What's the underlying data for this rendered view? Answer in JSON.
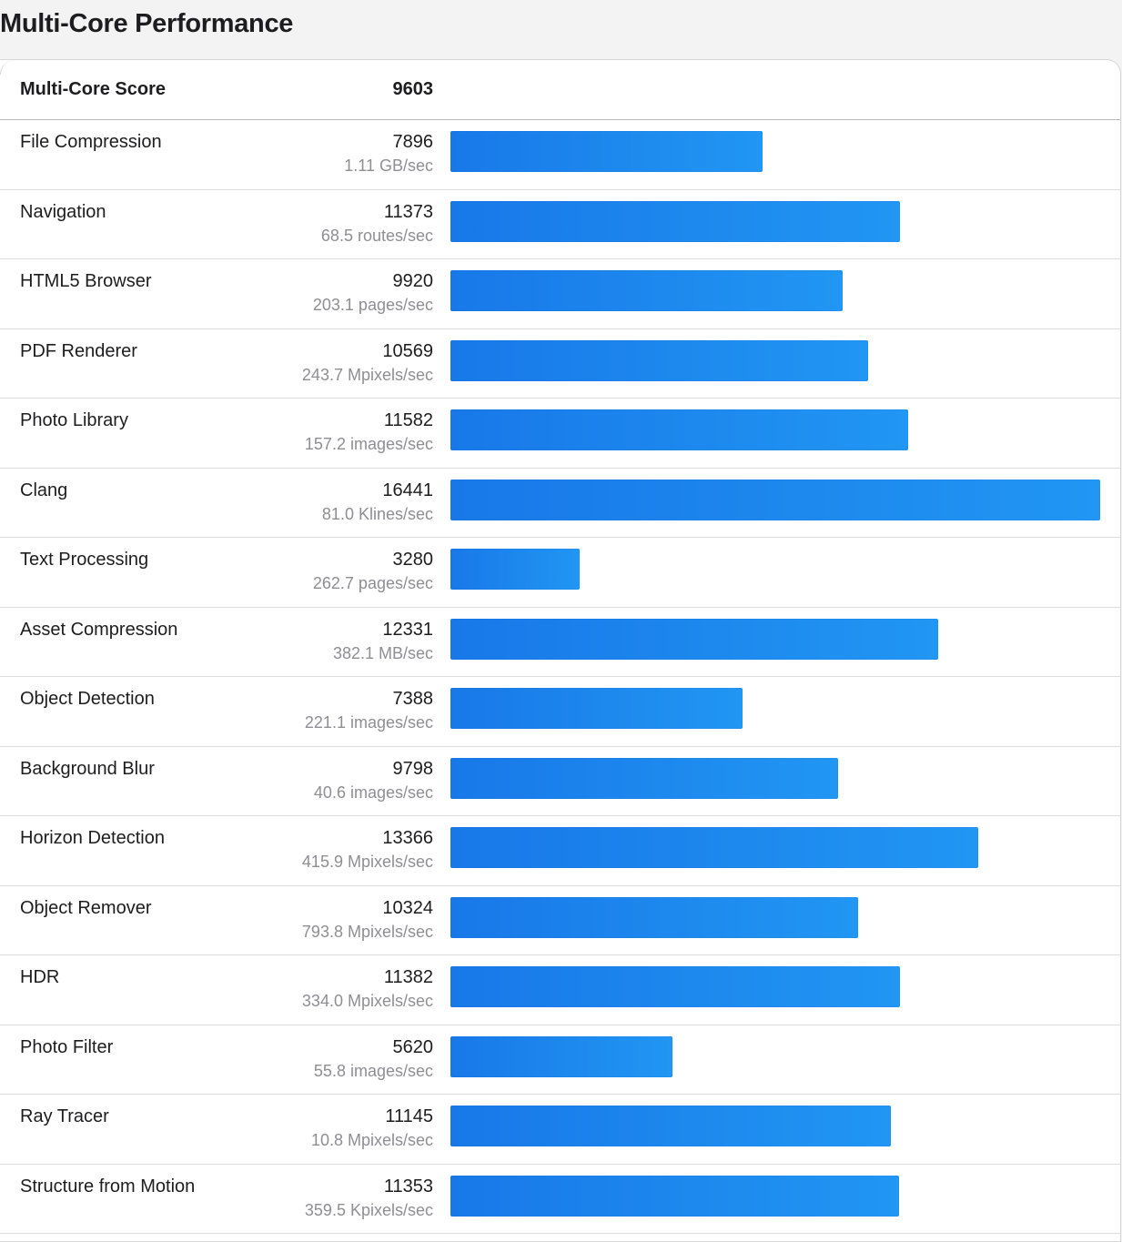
{
  "page": {
    "title": "Multi-Core Performance"
  },
  "summary": {
    "label": "Multi-Core Score",
    "value": "9603"
  },
  "colors": {
    "bar_start": "#1878e8",
    "bar_end": "#2196f3",
    "label_text": "#1d1d1f",
    "secondary_text": "#8e8e93"
  },
  "chart_data": {
    "type": "bar",
    "orientation": "horizontal",
    "title": "Multi-Core Performance",
    "categories": [
      "File Compression",
      "Navigation",
      "HTML5 Browser",
      "PDF Renderer",
      "Photo Library",
      "Clang",
      "Text Processing",
      "Asset Compression",
      "Object Detection",
      "Background Blur",
      "Horizon Detection",
      "Object Remover",
      "HDR",
      "Photo Filter",
      "Ray Tracer",
      "Structure from Motion"
    ],
    "values": [
      7896,
      11373,
      9920,
      10569,
      11582,
      16441,
      3280,
      12331,
      7388,
      9798,
      13366,
      10324,
      11382,
      5620,
      11145,
      11353
    ],
    "rates": [
      "1.11 GB/sec",
      "68.5 routes/sec",
      "203.1 pages/sec",
      "243.7 Mpixels/sec",
      "157.2 images/sec",
      "81.0 Klines/sec",
      "262.7 pages/sec",
      "382.1 MB/sec",
      "221.1 images/sec",
      "40.6 images/sec",
      "415.9 Mpixels/sec",
      "793.8 Mpixels/sec",
      "334.0 Mpixels/sec",
      "55.8 images/sec",
      "10.8 Mpixels/sec",
      "359.5 Kpixels/sec"
    ],
    "xlim": [
      0,
      16441
    ],
    "grid": false
  }
}
